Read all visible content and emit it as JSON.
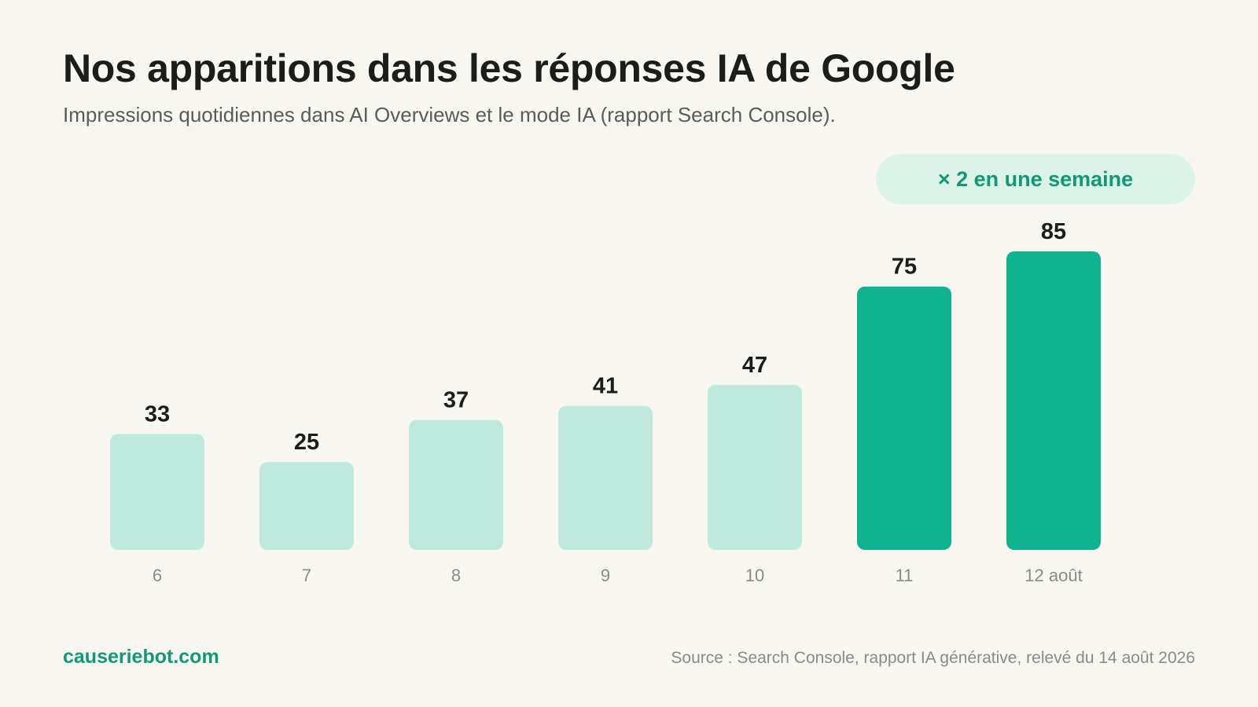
{
  "header": {
    "title": "Nos apparitions dans les réponses IA de Google",
    "subtitle": "Impressions quotidiennes dans AI Overviews et le mode IA (rapport Search Console)."
  },
  "badge": {
    "label": "× 2 en une semaine"
  },
  "footer": {
    "brand": "causeriebot.com",
    "source": "Source : Search Console, rapport IA générative, relevé du 14 août 2026"
  },
  "colors": {
    "bar_light": "#c0e9dd",
    "bar_highlight": "#10b390",
    "accent": "#0f9a75"
  },
  "chart_data": {
    "type": "bar",
    "categories": [
      "6",
      "7",
      "8",
      "9",
      "10",
      "11",
      "12 août"
    ],
    "values": [
      33,
      25,
      37,
      41,
      47,
      75,
      85
    ],
    "highlighted": [
      false,
      false,
      false,
      false,
      false,
      true,
      true
    ],
    "title": "Nos apparitions dans les réponses IA de Google",
    "xlabel": "",
    "ylabel": "",
    "ylim": [
      0,
      85
    ],
    "grid": false,
    "data_labels": true
  }
}
